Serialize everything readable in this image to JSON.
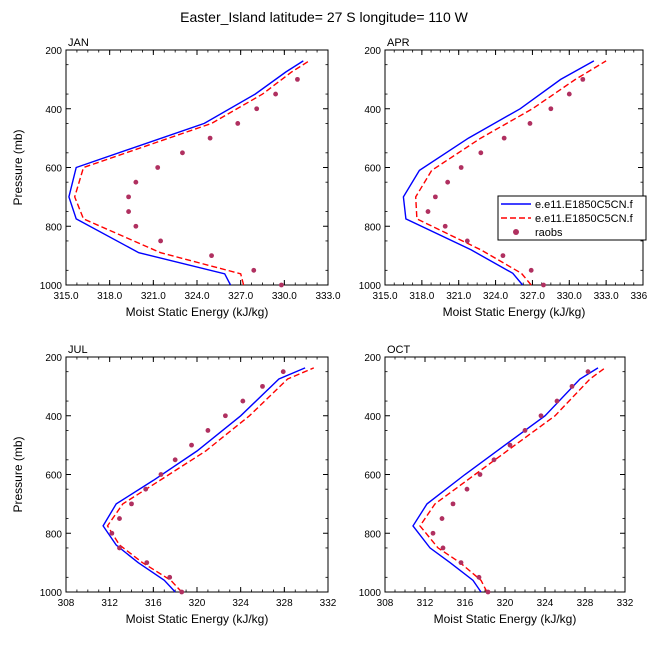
{
  "title": "Easter_Island  latitude= 27 S longitude= 110 W",
  "colors": {
    "model1": "#0000ff",
    "model2": "#ff0000",
    "raobs": "#b03060"
  },
  "legend": {
    "placement": "right of APR panel",
    "entries": [
      {
        "label": "e.e11.E1850C5CN.f",
        "style": "solid",
        "color": "#0000ff"
      },
      {
        "label": "e.e11.E1850C5CN.f",
        "style": "dashed",
        "color": "#ff0000"
      },
      {
        "label": "raobs",
        "style": "marker",
        "color": "#b03060"
      }
    ]
  },
  "chart_data": [
    {
      "type": "line",
      "panel_label": "JAN",
      "xlabel": "Moist Static Energy (kJ/kg)",
      "ylabel": "Pressure (mb)",
      "xlim": [
        315,
        333
      ],
      "ylim": [
        1000,
        200
      ],
      "y_inverted": true,
      "xticks": [
        315.0,
        318.0,
        321.0,
        324.0,
        327.0,
        330.0,
        333.0
      ],
      "xtick_labels": [
        "315.0",
        "318.0",
        "321.0",
        "324.0",
        "327.0",
        "330.0",
        "333.0"
      ],
      "yticks": [
        200,
        400,
        600,
        800,
        1000
      ],
      "series": [
        {
          "style": "solid",
          "color": "#0000ff",
          "x": [
            326.3,
            325.9,
            320.0,
            315.7,
            315.2,
            315.7,
            324.5,
            328.0,
            330.1,
            331.3
          ],
          "y": [
            1000,
            962,
            890,
            775,
            700,
            600,
            450,
            350,
            275,
            237
          ]
        },
        {
          "style": "dashed",
          "color": "#ff0000",
          "x": [
            327.2,
            327.0,
            321.5,
            316.2,
            315.6,
            316.2,
            325.0,
            328.5,
            330.5,
            331.7
          ],
          "y": [
            1000,
            962,
            890,
            775,
            700,
            600,
            450,
            350,
            275,
            237
          ]
        },
        {
          "style": "marker",
          "color": "#b03060",
          "x": [
            329.8,
            327.9,
            325.0,
            321.5,
            319.8,
            319.3,
            319.3,
            319.8,
            321.3,
            323.0,
            324.9,
            326.8,
            328.1,
            329.4,
            330.9
          ],
          "y": [
            1000,
            950,
            900,
            850,
            800,
            750,
            700,
            650,
            600,
            550,
            500,
            450,
            400,
            350,
            300
          ]
        }
      ]
    },
    {
      "type": "line",
      "panel_label": "APR",
      "xlabel": "Moist Static Energy (kJ/kg)",
      "ylabel": "",
      "xlim": [
        315,
        336
      ],
      "ylim": [
        1000,
        200
      ],
      "y_inverted": true,
      "xticks": [
        315.0,
        318.0,
        321.0,
        324.0,
        327.0,
        330.0,
        333.0,
        336.0
      ],
      "xtick_labels": [
        "315.0",
        "318.0",
        "321.0",
        "324.0",
        "327.0",
        "330.0",
        "333.0",
        "336.0"
      ],
      "yticks": [
        200,
        400,
        600,
        800,
        1000
      ],
      "series": [
        {
          "style": "solid",
          "color": "#0000ff",
          "x": [
            326.2,
            325.4,
            322.0,
            316.7,
            316.5,
            317.8,
            321.8,
            326.0,
            329.3,
            332.0
          ],
          "y": [
            1000,
            960,
            880,
            775,
            700,
            610,
            500,
            400,
            300,
            237
          ]
        },
        {
          "style": "dashed",
          "color": "#ff0000",
          "x": [
            326.9,
            326.1,
            322.8,
            317.6,
            317.5,
            318.8,
            322.8,
            327.0,
            330.5,
            333.0
          ],
          "y": [
            1000,
            960,
            880,
            775,
            700,
            610,
            500,
            400,
            300,
            237
          ]
        },
        {
          "style": "marker",
          "color": "#b03060",
          "x": [
            327.9,
            326.9,
            324.6,
            321.7,
            319.9,
            318.5,
            319.1,
            320.1,
            321.2,
            322.8,
            324.7,
            326.8,
            328.5,
            330.0,
            331.1
          ],
          "y": [
            1000,
            950,
            900,
            850,
            800,
            750,
            700,
            650,
            600,
            550,
            500,
            450,
            400,
            350,
            300
          ]
        }
      ]
    },
    {
      "type": "line",
      "panel_label": "JUL",
      "xlabel": "Moist Static Energy (kJ/kg)",
      "ylabel": "Pressure (mb)",
      "xlim": [
        308,
        332
      ],
      "ylim": [
        1000,
        200
      ],
      "y_inverted": true,
      "xticks": [
        308,
        312,
        316,
        320,
        324,
        328,
        332
      ],
      "xtick_labels": [
        "308",
        "312",
        "316",
        "320",
        "324",
        "328",
        "332"
      ],
      "yticks": [
        200,
        400,
        600,
        800,
        1000
      ],
      "series": [
        {
          "style": "solid",
          "color": "#0000ff",
          "x": [
            318.0,
            317.0,
            314.6,
            312.6,
            311.4,
            312.6,
            316.0,
            320.0,
            324.0,
            327.5,
            329.9
          ],
          "y": [
            1000,
            960,
            900,
            840,
            775,
            700,
            620,
            520,
            400,
            275,
            237
          ]
        },
        {
          "style": "dashed",
          "color": "#ff0000",
          "x": [
            318.6,
            317.6,
            315.0,
            312.9,
            311.8,
            313.2,
            316.6,
            320.8,
            324.8,
            328.3,
            330.7
          ],
          "y": [
            1000,
            960,
            900,
            840,
            775,
            700,
            620,
            520,
            400,
            275,
            237
          ]
        },
        {
          "style": "marker",
          "color": "#b03060",
          "x": [
            318.6,
            317.5,
            315.4,
            312.9,
            312.2,
            312.9,
            314.0,
            315.3,
            316.7,
            318.0,
            319.5,
            321.0,
            322.6,
            324.2,
            326.0,
            327.9
          ],
          "y": [
            1000,
            950,
            900,
            850,
            800,
            750,
            700,
            650,
            600,
            550,
            500,
            450,
            400,
            350,
            300,
            250
          ]
        }
      ]
    },
    {
      "type": "line",
      "panel_label": "OCT",
      "xlabel": "Moist Static Energy (kJ/kg)",
      "ylabel": "",
      "xlim": [
        308,
        332
      ],
      "ylim": [
        1000,
        200
      ],
      "y_inverted": true,
      "xticks": [
        308,
        312,
        316,
        320,
        324,
        328,
        332
      ],
      "xtick_labels": [
        "308",
        "312",
        "316",
        "320",
        "324",
        "328",
        "332"
      ],
      "yticks": [
        200,
        400,
        600,
        800,
        1000
      ],
      "series": [
        {
          "style": "solid",
          "color": "#0000ff",
          "x": [
            317.6,
            316.8,
            314.5,
            312.5,
            310.8,
            312.2,
            316.0,
            320.0,
            324.0,
            327.5,
            329.3
          ],
          "y": [
            1000,
            960,
            900,
            850,
            775,
            700,
            600,
            500,
            400,
            275,
            237
          ]
        },
        {
          "style": "dashed",
          "color": "#ff0000",
          "x": [
            318.2,
            317.6,
            315.5,
            313.3,
            311.5,
            313.0,
            317.0,
            321.0,
            325.0,
            328.5,
            330.0
          ],
          "y": [
            1000,
            960,
            900,
            850,
            775,
            700,
            600,
            500,
            400,
            275,
            237
          ]
        },
        {
          "style": "marker",
          "color": "#b03060",
          "x": [
            318.3,
            317.4,
            315.6,
            313.8,
            312.8,
            313.7,
            314.8,
            316.2,
            317.5,
            318.9,
            320.5,
            322.0,
            323.6,
            325.2,
            326.7,
            328.3
          ],
          "y": [
            1000,
            950,
            900,
            850,
            800,
            750,
            700,
            650,
            600,
            550,
            500,
            450,
            400,
            350,
            300,
            250
          ]
        }
      ]
    }
  ]
}
